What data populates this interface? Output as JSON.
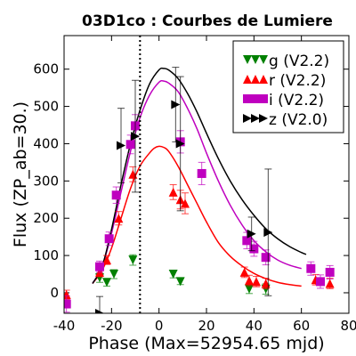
{
  "chart_data": {
    "type": "scatter",
    "title": "03D1co : Courbes de Lumiere",
    "xlabel": "Phase (Max=52954.65 mjd)",
    "ylabel": "Flux (ZP_ab=30.)",
    "xlim": [
      -40,
      80
    ],
    "ylim": [
      -55,
      690
    ],
    "x_ticks": [
      -40,
      -20,
      0,
      20,
      40,
      60,
      80
    ],
    "y_ticks": [
      0,
      100,
      200,
      300,
      400,
      500,
      600
    ],
    "x_tick_labels": [
      "-40",
      "-20",
      "0",
      "20",
      "40",
      "60",
      "80"
    ],
    "y_tick_labels": [
      "0",
      "100",
      "200",
      "300",
      "400",
      "500",
      "600"
    ],
    "grid": false,
    "legend_position": "top-right",
    "vline_x": -8,
    "series": [
      {
        "name": "g (V2.2)",
        "color": "#008000",
        "marker": "triangle-down",
        "points": [
          {
            "x": -25,
            "y": 40,
            "err": 12
          },
          {
            "x": -22,
            "y": 28,
            "err": 10
          },
          {
            "x": -19,
            "y": 50,
            "err": 12
          },
          {
            "x": -11,
            "y": 88,
            "err": 14
          },
          {
            "x": 6,
            "y": 50,
            "err": 10
          },
          {
            "x": 9,
            "y": 30,
            "err": 8
          },
          {
            "x": 38,
            "y": 10,
            "err": 12
          },
          {
            "x": 45,
            "y": 10,
            "err": 14
          }
        ]
      },
      {
        "name": "r (V2.2)",
        "color": "#ff0000",
        "marker": "triangle-up",
        "points": [
          {
            "x": -39,
            "y": -5,
            "err": 12
          },
          {
            "x": -25,
            "y": 55,
            "err": 12
          },
          {
            "x": -22,
            "y": 88,
            "err": 12
          },
          {
            "x": -17,
            "y": 200,
            "err": 18
          },
          {
            "x": -11,
            "y": 318,
            "err": 20
          },
          {
            "x": 6,
            "y": 270,
            "err": 20
          },
          {
            "x": 9,
            "y": 250,
            "err": 25
          },
          {
            "x": 11,
            "y": 240,
            "err": 28
          },
          {
            "x": 36,
            "y": 55,
            "err": 14
          },
          {
            "x": 38,
            "y": 33,
            "err": 14
          },
          {
            "x": 41,
            "y": 30,
            "err": 14
          },
          {
            "x": 45,
            "y": 25,
            "err": 14
          },
          {
            "x": 66,
            "y": 35,
            "err": 14
          },
          {
            "x": 72,
            "y": 25,
            "err": 14
          }
        ]
      },
      {
        "name": "i (V2.2)",
        "color": "#bf00bf",
        "marker": "square",
        "points": [
          {
            "x": -39,
            "y": -30,
            "err": 22
          },
          {
            "x": -25,
            "y": 70,
            "err": 15
          },
          {
            "x": -21,
            "y": 145,
            "err": 18
          },
          {
            "x": -18,
            "y": 262,
            "err": 22
          },
          {
            "x": -12,
            "y": 398,
            "err": 25
          },
          {
            "x": -10,
            "y": 448,
            "err": 30
          },
          {
            "x": 9,
            "y": 405,
            "err": 30
          },
          {
            "x": 18,
            "y": 320,
            "err": 30
          },
          {
            "x": 37,
            "y": 140,
            "err": 22
          },
          {
            "x": 40,
            "y": 118,
            "err": 20
          },
          {
            "x": 45,
            "y": 95,
            "err": 20
          },
          {
            "x": 64,
            "y": 65,
            "err": 18
          },
          {
            "x": 68,
            "y": 30,
            "err": 18
          },
          {
            "x": 72,
            "y": 55,
            "err": 18
          }
        ]
      },
      {
        "name": "z (V2.0)",
        "color": "#000000",
        "marker": "triangle-right",
        "points": [
          {
            "x": -25,
            "y": -55,
            "err": 45
          },
          {
            "x": -16,
            "y": 395,
            "err": 100
          },
          {
            "x": -10,
            "y": 420,
            "err": 150
          },
          {
            "x": 7,
            "y": 505,
            "err": 100
          },
          {
            "x": 9,
            "y": 400,
            "err": 180
          },
          {
            "x": 39,
            "y": 158,
            "err": 45
          },
          {
            "x": 46,
            "y": 162,
            "err": 170
          }
        ]
      }
    ],
    "fit_curves": [
      {
        "color": "#ff0000",
        "x": [
          -28,
          -24,
          -20,
          -16,
          -12,
          -8,
          -4,
          -2,
          0,
          2,
          4,
          8,
          12,
          16,
          20,
          25,
          30,
          35,
          40,
          45,
          50,
          55,
          60
        ],
        "y": [
          25,
          60,
          120,
          200,
          280,
          340,
          375,
          388,
          393,
          390,
          380,
          340,
          290,
          240,
          190,
          135,
          98,
          72,
          52,
          38,
          28,
          22,
          18
        ]
      },
      {
        "color": "#bf00bf",
        "x": [
          -28,
          -24,
          -20,
          -16,
          -12,
          -8,
          -4,
          0,
          2,
          4,
          8,
          12,
          16,
          20,
          25,
          30,
          35,
          40,
          45,
          50,
          55,
          60
        ],
        "y": [
          25,
          70,
          160,
          270,
          380,
          470,
          530,
          565,
          568,
          563,
          540,
          495,
          440,
          375,
          300,
          235,
          182,
          140,
          110,
          88,
          74,
          65
        ]
      },
      {
        "color": "#000000",
        "x": [
          -28,
          -24,
          -20,
          -16,
          -12,
          -8,
          -4,
          0,
          2,
          4,
          8,
          12,
          16,
          20,
          25,
          30,
          35,
          40,
          45,
          50,
          55,
          60,
          62
        ],
        "y": [
          25,
          70,
          170,
          290,
          400,
          490,
          560,
          598,
          602,
          598,
          575,
          535,
          485,
          428,
          360,
          300,
          250,
          208,
          172,
          145,
          124,
          108,
          103
        ]
      }
    ]
  }
}
